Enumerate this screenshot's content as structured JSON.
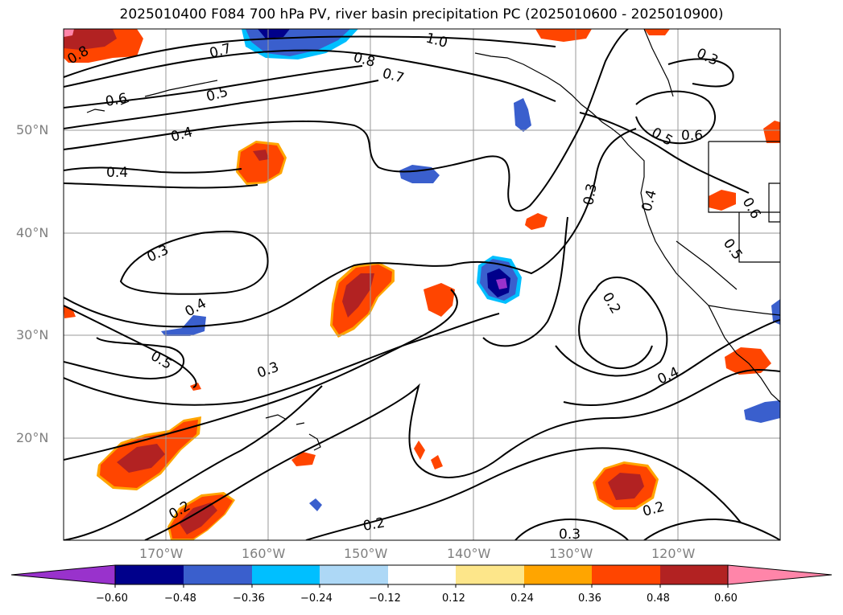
{
  "title": "2025010400 F084 700 hPa PV, river basin precipitation PC (2025010600 - 2025010900)",
  "lat_labels": [
    "50°N",
    "40°N",
    "30°N",
    "20°N"
  ],
  "lon_labels": [
    "170°W",
    "160°W",
    "150°W",
    "140°W",
    "130°W",
    "120°W"
  ],
  "contour_labels": [
    "0.8",
    "0.7",
    "1.0",
    "0.8",
    "0.7",
    "0.6",
    "0.5",
    "0.3",
    "0.4",
    "0.4",
    "0.5",
    "0.6",
    "0.3",
    "0.4",
    "0.6",
    "0.3",
    "0.5",
    "0.4",
    "0.2",
    "0.5",
    "0.3",
    "0.4",
    "0.2",
    "0.2",
    "0.2",
    "0.3"
  ],
  "colorbar": {
    "ticks": [
      "−0.60",
      "−0.48",
      "−0.36",
      "−0.24",
      "−0.12",
      "0.12",
      "0.24",
      "0.36",
      "0.48",
      "0.60"
    ],
    "colors": [
      "#9932cc",
      "#00008b",
      "#3a5fcd",
      "#00bfff",
      "#add8f6",
      "#ffffff",
      "#fde68a",
      "#ffa500",
      "#ff4500",
      "#b22222",
      "#ff85a9"
    ]
  },
  "colors": {
    "contour": "#000000",
    "coast": "#000000",
    "grid": "#9a9a9a"
  }
}
